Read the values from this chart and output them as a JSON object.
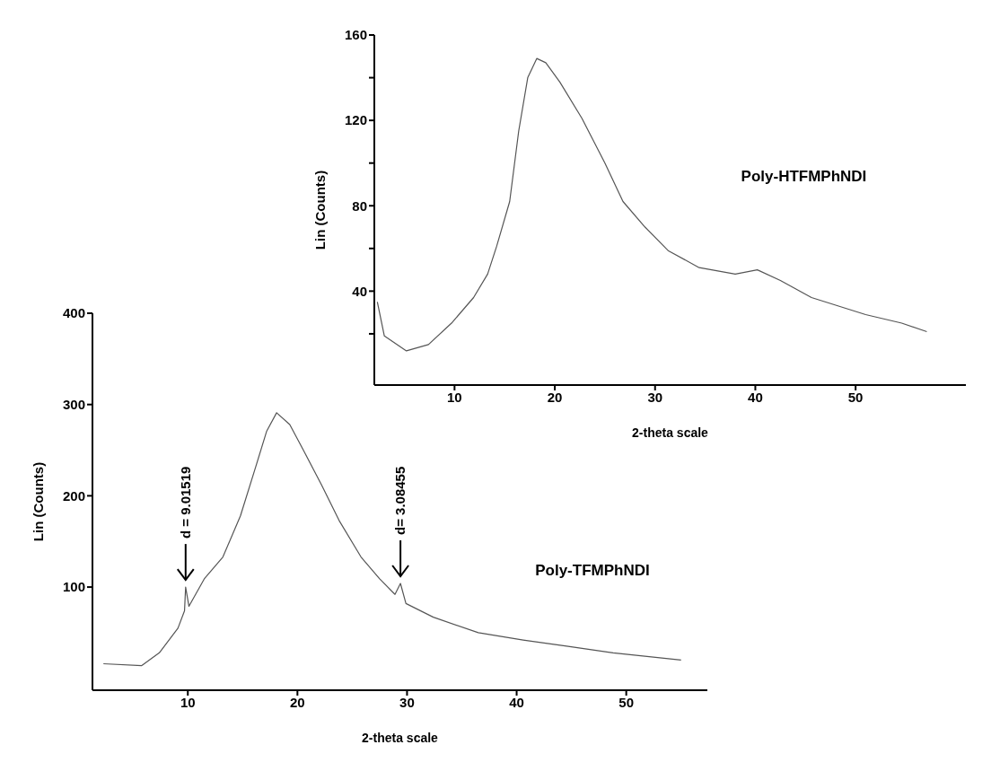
{
  "chart_data": [
    {
      "type": "line",
      "xlabel": "2-theta scale",
      "ylabel": "Lin (Counts)",
      "xlim": [
        2,
        61
      ],
      "ylim": [
        -4,
        160
      ],
      "xticks": [
        10,
        20,
        30,
        40,
        50
      ],
      "yticks": [
        {
          "value": 20,
          "label": null
        },
        40,
        {
          "value": 60,
          "label": null
        },
        80,
        {
          "value": 100,
          "label": null
        },
        120,
        {
          "value": 140,
          "label": null
        },
        160
      ],
      "series": [
        {
          "name": "Poly-HTFMPhNDI",
          "color": "#555555",
          "x": [
            2.3,
            3,
            5.2,
            7.4,
            9.7,
            11.9,
            13.3,
            14.2,
            15.5,
            16.4,
            17.3,
            18.2,
            19.1,
            20.5,
            22.7,
            25,
            26.8,
            29,
            31.3,
            34.4,
            38,
            40.2,
            42.5,
            45.6,
            48.3,
            51,
            54.6,
            57.1
          ],
          "values": [
            35,
            19,
            12,
            15,
            25,
            37,
            48,
            61,
            82,
            115,
            140,
            149,
            147,
            138,
            121,
            100,
            82,
            70,
            59,
            51,
            48,
            50,
            45,
            37,
            33,
            29,
            25,
            21
          ]
        }
      ]
    },
    {
      "type": "line",
      "xlabel": "2-theta scale",
      "ylabel": "Lin (Counts)",
      "xlim": [
        1.3,
        57.4
      ],
      "ylim": [
        -13,
        400
      ],
      "xticks": [
        10,
        20,
        30,
        40,
        50
      ],
      "yticks": [
        100,
        200,
        300,
        400
      ],
      "series": [
        {
          "name": "Poly-TFMPhNDI",
          "color": "#555555",
          "x": [
            2.3,
            5.8,
            7.4,
            9.1,
            9.7,
            9.8,
            10.1,
            11.5,
            13.2,
            14.8,
            16.2,
            17.2,
            18.1,
            19.3,
            20.5,
            22.2,
            23.8,
            25.8,
            27.5,
            28.9,
            29.4,
            29.9,
            32.4,
            36.5,
            40.6,
            44.7,
            48.8,
            55
          ],
          "values": [
            16,
            14,
            28,
            55,
            74,
            100,
            79,
            109,
            133,
            178,
            232,
            271,
            291,
            278,
            251,
            212,
            173,
            133,
            109,
            92,
            104,
            82,
            67,
            50,
            42,
            35,
            28,
            20
          ]
        }
      ],
      "annotations": [
        {
          "text": "d = 9.01519",
          "x": 9.8,
          "y": 100
        },
        {
          "text": "d= 3.08455",
          "x": 29.4,
          "y": 104
        }
      ]
    }
  ]
}
